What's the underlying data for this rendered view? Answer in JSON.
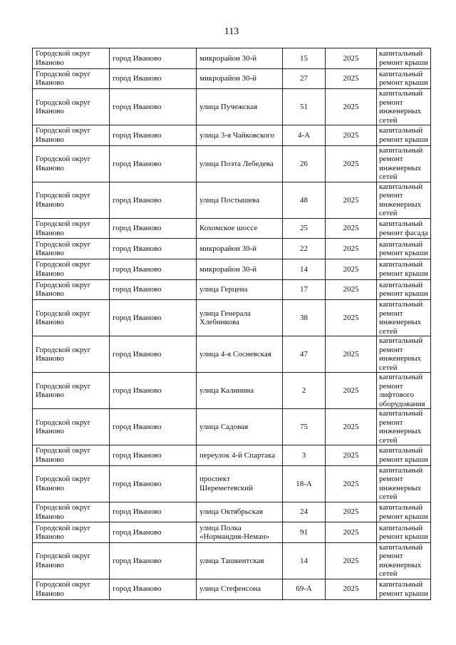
{
  "page_number": "113",
  "rows": [
    {
      "district": "Городской округ Иваново",
      "city": "город Иваново",
      "street": "микрорайон 30-й",
      "house": "15",
      "year": "2025",
      "work": "капитальный ремонт крыши"
    },
    {
      "district": "Городской округ Иваново",
      "city": "город Иваново",
      "street": "микрорайон 30-й",
      "house": "27",
      "year": "2025",
      "work": "капитальный ремонт крыши"
    },
    {
      "district": "Городской округ Иваново",
      "city": "город Иваново",
      "street": "улица Пучежская",
      "house": "51",
      "year": "2025",
      "work": "капитальный ремонт инженерных сетей"
    },
    {
      "district": "Городской округ Иваново",
      "city": "город Иваново",
      "street": "улица 3-я Чайковского",
      "house": "4-А",
      "year": "2025",
      "work": "капитальный ремонт крыши"
    },
    {
      "district": "Городской округ Иваново",
      "city": "город Иваново",
      "street": "улица Поэта Лебедева",
      "house": "26",
      "year": "2025",
      "work": "капитальный ремонт инженерных сетей"
    },
    {
      "district": "Городской округ Иваново",
      "city": "город Иваново",
      "street": "улица Постышева",
      "house": "48",
      "year": "2025",
      "work": "капитальный ремонт инженерных сетей"
    },
    {
      "district": "Городской округ Иваново",
      "city": "город Иваново",
      "street": "Кохомское шоссе",
      "house": "25",
      "year": "2025",
      "work": "капитальный ремонт фасада"
    },
    {
      "district": "Городской округ Иваново",
      "city": "город Иваново",
      "street": "микрорайон 30-й",
      "house": "22",
      "year": "2025",
      "work": "капитальный ремонт крыши"
    },
    {
      "district": "Городской округ Иваново",
      "city": "город Иваново",
      "street": "микрорайон 30-й",
      "house": "14",
      "year": "2025",
      "work": "капитальный ремонт крыши"
    },
    {
      "district": "Городской округ Иваново",
      "city": "город Иваново",
      "street": "улица Герцена",
      "house": "17",
      "year": "2025",
      "work": "капитальный ремонт крыши"
    },
    {
      "district": "Городской округ Иваново",
      "city": "город Иваново",
      "street": "улица Генерала Хлебникова",
      "house": "38",
      "year": "2025",
      "work": "капитальный ремонт инженерных сетей"
    },
    {
      "district": "Городской округ Иваново",
      "city": "город Иваново",
      "street": "улица 4-я Сосневская",
      "house": "47",
      "year": "2025",
      "work": "капитальный ремонт инженерных сетей"
    },
    {
      "district": "Городской округ Иваново",
      "city": "город Иваново",
      "street": "улица Калинина",
      "house": "2",
      "year": "2025",
      "work": "капитальный ремонт лифтового оборудования"
    },
    {
      "district": "Городской округ Иваново",
      "city": "город Иваново",
      "street": "улица Садовая",
      "house": "75",
      "year": "2025",
      "work": "капитальный ремонт инженерных сетей"
    },
    {
      "district": "Городской округ Иваново",
      "city": "город Иваново",
      "street": "переулок 4-й Спартака",
      "house": "3",
      "year": "2025",
      "work": "капитальный ремонт крыши"
    },
    {
      "district": "Городской округ Иваново",
      "city": "город Иваново",
      "street": "проспект Шереметевский",
      "house": "18-А",
      "year": "2025",
      "work": "капитальный ремонт инженерных сетей"
    },
    {
      "district": "Городской округ Иваново",
      "city": "город Иваново",
      "street": "улица Октябрьская",
      "house": "24",
      "year": "2025",
      "work": "капитальный ремонт крыши"
    },
    {
      "district": "Городской округ Иваново",
      "city": "город Иваново",
      "street": "улица Полка «Нормандия-Неман»",
      "house": "91",
      "year": "2025",
      "work": "капитальный ремонт крыши"
    },
    {
      "district": "Городской округ Иваново",
      "city": "город Иваново",
      "street": "улица Ташкентская",
      "house": "14",
      "year": "2025",
      "work": "капитальный ремонт инженерных сетей"
    },
    {
      "district": "Городской округ Иваново",
      "city": "город Иваново",
      "street": "улица Стефенсона",
      "house": "69-А",
      "year": "2025",
      "work": "капитальный ремонт крыши"
    }
  ]
}
